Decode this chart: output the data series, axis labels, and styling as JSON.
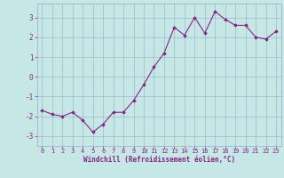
{
  "x": [
    0,
    1,
    2,
    3,
    4,
    5,
    6,
    7,
    8,
    9,
    10,
    11,
    12,
    13,
    14,
    15,
    16,
    17,
    18,
    19,
    20,
    21,
    22,
    23
  ],
  "y": [
    -1.7,
    -1.9,
    -2.0,
    -1.8,
    -2.2,
    -2.8,
    -2.4,
    -1.8,
    -1.8,
    -1.2,
    -0.4,
    0.5,
    1.2,
    2.5,
    2.1,
    3.0,
    2.2,
    3.3,
    2.9,
    2.6,
    2.6,
    2.0,
    1.9,
    2.3
  ],
  "line_color": "#882288",
  "marker": "D",
  "markersize": 1.8,
  "linewidth": 0.8,
  "bg_color": "#c5e8e5",
  "grid_color": "#99aacc",
  "xlabel": "Windchill (Refroidissement éolien,°C)",
  "xlabel_color": "#882288",
  "tick_color": "#882288",
  "label_color": "#882288",
  "ylim": [
    -3.5,
    3.7
  ],
  "yticks": [
    -3,
    -2,
    -1,
    0,
    1,
    2,
    3
  ],
  "xlim": [
    -0.5,
    23.5
  ],
  "xticks": [
    0,
    1,
    2,
    3,
    4,
    5,
    6,
    7,
    8,
    9,
    10,
    11,
    12,
    13,
    14,
    15,
    16,
    17,
    18,
    19,
    20,
    21,
    22,
    23
  ],
  "tick_fontsize": 5.0,
  "xlabel_fontsize": 5.5
}
